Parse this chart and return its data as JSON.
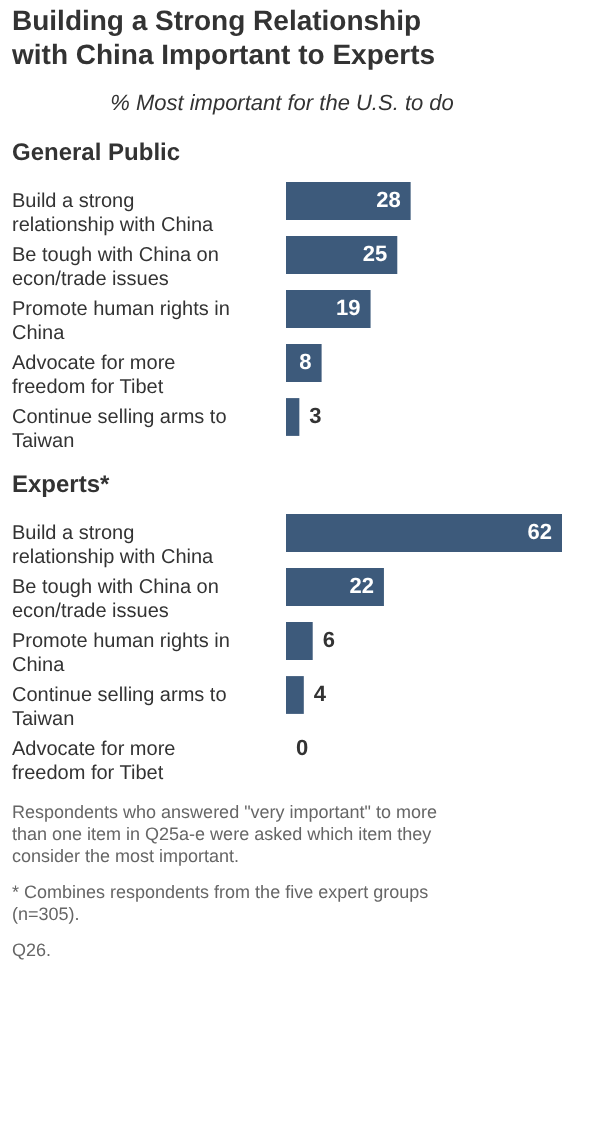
{
  "chart_data": [
    {
      "type": "other",
      "title": "Building a Strong Relationship with China Important to Experts",
      "subtitle": "% Most important for the U.S. to do"
    },
    {
      "type": "bar",
      "orientation": "horizontal",
      "title": "General Public",
      "categories": [
        "Build a strong relationship with China",
        "Be tough with China on econ/trade issues",
        "Promote human rights in China",
        "Advocate for more freedom for Tibet",
        "Continue selling arms to Taiwan"
      ],
      "values": [
        28,
        25,
        19,
        8,
        3
      ],
      "color": "#3d5a7b",
      "data_labels": true
    },
    {
      "type": "bar",
      "orientation": "horizontal",
      "title": "Experts*",
      "categories": [
        "Build a strong relationship with China",
        "Be tough with China on econ/trade issues",
        "Promote human rights in China",
        "Continue selling arms to Taiwan",
        "Advocate for more freedom for Tibet"
      ],
      "values": [
        62,
        22,
        6,
        4,
        0
      ],
      "color": "#3d5a7b",
      "data_labels": true,
      "annotations": [
        "Respondents who answered \"very important\" to more than one item in Q25a-e were asked which item they consider the most important.",
        "* Combines respondents from the five expert groups (n=305).",
        "Q26."
      ]
    }
  ]
}
